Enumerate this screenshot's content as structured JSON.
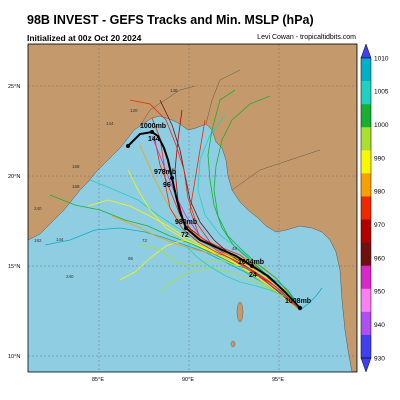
{
  "header": {
    "title": "98B INVEST - GEFS Tracks and Min. MSLP (hPa)",
    "init": "Initialized at 00z Oct 20 2024",
    "credit": "Levi Cowan - tropicaltidbits.com"
  },
  "axes": {
    "lat_labels": [
      "25°N",
      "20°N",
      "15°N",
      "10°N"
    ],
    "lon_labels": [
      "85°E",
      "90°E",
      "95°E"
    ]
  },
  "colorbar": {
    "ticks": [
      "1010",
      "1005",
      "1000",
      "990",
      "980",
      "970",
      "960",
      "950",
      "940",
      "930"
    ],
    "colors": [
      "#00b0c8",
      "#20d0c0",
      "#18b030",
      "#a8e030",
      "#f8f800",
      "#f8a000",
      "#f02800",
      "#b00000",
      "#701010",
      "#d828c8",
      "#f880f0",
      "#b050f0",
      "#4040f0"
    ]
  },
  "map": {
    "land_color": "#c49a6c",
    "ocean_color": "#8fcde3"
  },
  "track_labels": {
    "mean_1000": "1000mb",
    "mean_978": "978mb",
    "mean_980": "980mb",
    "mean_1004": "1004mb",
    "mean_1008": "1008mb",
    "h144": "144",
    "h96": "96",
    "h72": "72",
    "h24": "24",
    "f1": "120",
    "f2": "138",
    "f3": "144",
    "f4": "168",
    "f5": "240",
    "f6": "192",
    "f7": "144",
    "f8": "240",
    "f9": "168",
    "f10": "96",
    "f11": "72",
    "f12": "48"
  }
}
